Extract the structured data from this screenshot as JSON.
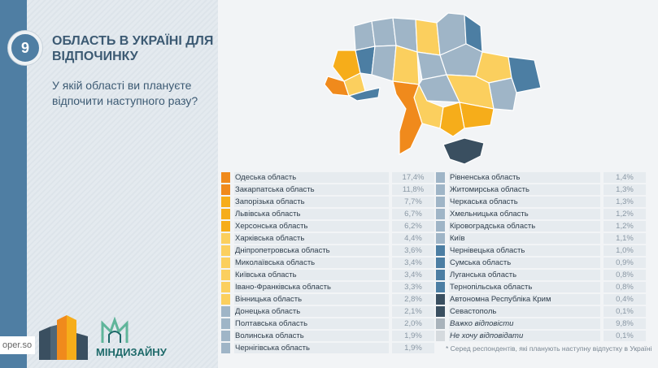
{
  "header": {
    "number": "9",
    "title": "ОБЛАСТЬ В УКРАЇНІ ДЛЯ ВІДПОЧИНКУ",
    "question": "У якій області ви плануєте відпочити наступного разу?"
  },
  "footer": {
    "site": "oper.so",
    "partner_logo": "МІНДИЗАЙНУ",
    "note": "* Серед респондентів, які планують наступну  відпустку в Україні"
  },
  "colors": {
    "c1": "#f08a1c",
    "c2": "#f6ad1a",
    "c3": "#fbcf5e",
    "c4": "#9fb5c7",
    "c5": "#4c7ea3",
    "c6": "#3a4f60",
    "c7": "#a9b3bb",
    "c8": "#d5dade"
  },
  "chart_data": {
    "type": "table",
    "title": "ОБЛАСТЬ В УКРАЇНІ ДЛЯ ВІДПОЧИНКУ",
    "unit": "%",
    "left": [
      {
        "label": "Одеська область",
        "value": "17,4%",
        "color": "#f08a1c"
      },
      {
        "label": "Закарпатська область",
        "value": "11,8%",
        "color": "#f08a1c"
      },
      {
        "label": "Запорізька область",
        "value": "7,7%",
        "color": "#f6ad1a"
      },
      {
        "label": "Львівська область",
        "value": "6,7%",
        "color": "#f6ad1a"
      },
      {
        "label": "Херсонська область",
        "value": "6,2%",
        "color": "#f6ad1a"
      },
      {
        "label": "Харківська область",
        "value": "4,4%",
        "color": "#fbcf5e"
      },
      {
        "label": "Дніпропетровська область",
        "value": "3,6%",
        "color": "#fbcf5e"
      },
      {
        "label": "Миколаївська область",
        "value": "3,4%",
        "color": "#fbcf5e"
      },
      {
        "label": "Київська область",
        "value": "3,4%",
        "color": "#fbcf5e"
      },
      {
        "label": "Івано-Франківська область",
        "value": "3,3%",
        "color": "#fbcf5e"
      },
      {
        "label": "Вінницька область",
        "value": "2,8%",
        "color": "#fbcf5e"
      },
      {
        "label": "Донецька область",
        "value": "2,1%",
        "color": "#9fb5c7"
      },
      {
        "label": "Полтавська область",
        "value": "2,0%",
        "color": "#9fb5c7"
      },
      {
        "label": "Волинська область",
        "value": "1,9%",
        "color": "#9fb5c7"
      },
      {
        "label": "Чернігівська область",
        "value": "1,9%",
        "color": "#9fb5c7"
      }
    ],
    "right": [
      {
        "label": "Рівненська область",
        "value": "1,4%",
        "color": "#9fb5c7"
      },
      {
        "label": "Житомирська область",
        "value": "1,3%",
        "color": "#9fb5c7"
      },
      {
        "label": "Черкаська область",
        "value": "1,3%",
        "color": "#9fb5c7"
      },
      {
        "label": "Хмельницька область",
        "value": "1,2%",
        "color": "#9fb5c7"
      },
      {
        "label": "Кіровоградська область",
        "value": "1,2%",
        "color": "#9fb5c7"
      },
      {
        "label": "Київ",
        "value": "1,1%",
        "color": "#9fb5c7"
      },
      {
        "label": "Чернівецька область",
        "value": "1,0%",
        "color": "#4c7ea3"
      },
      {
        "label": "Сумська область",
        "value": "0,9%",
        "color": "#4c7ea3"
      },
      {
        "label": "Луганська область",
        "value": "0,8%",
        "color": "#4c7ea3"
      },
      {
        "label": "Тернопільська область",
        "value": "0,8%",
        "color": "#4c7ea3"
      },
      {
        "label": "Автономна Республіка Крим",
        "value": "0,4%",
        "color": "#3a4f60"
      },
      {
        "label": "Севастополь",
        "value": "0,1%",
        "color": "#3a4f60"
      },
      {
        "label": "Важко відповісти",
        "value": "9,8%",
        "color": "#a9b3bb",
        "italic": true
      },
      {
        "label": "Не хочу відповідати",
        "value": "0,1%",
        "color": "#d5dade",
        "italic": true
      }
    ]
  }
}
